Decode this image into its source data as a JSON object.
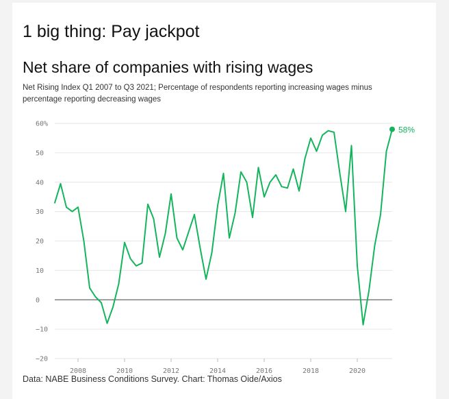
{
  "header": {
    "headline": "1 big thing: Pay jackpot"
  },
  "footer": {
    "source": "Data: NABE Business Conditions Survey. Chart: Thomas Oide/Axios"
  },
  "colors": {
    "line": "#13b45b",
    "grid": "#e6e6e6",
    "zero": "#444444"
  },
  "chart_data": {
    "type": "line",
    "title": "Net share of companies with rising wages",
    "subtitle": "Net Rising Index Q1 2007 to Q3 2021; Percentage of respondents reporting increasing wages minus percentage reporting decreasing wages",
    "xlabel": "",
    "ylabel": "",
    "xlim": [
      2007.0,
      2021.5
    ],
    "ylim": [
      -20,
      60
    ],
    "grid": true,
    "legend": "none",
    "x_ticks": [
      {
        "value": 2008,
        "label": "2008"
      },
      {
        "value": 2010,
        "label": "2010"
      },
      {
        "value": 2012,
        "label": "2012"
      },
      {
        "value": 2014,
        "label": "2014"
      },
      {
        "value": 2016,
        "label": "2016"
      },
      {
        "value": 2018,
        "label": "2018"
      },
      {
        "value": 2020,
        "label": "2020"
      }
    ],
    "y_ticks": [
      {
        "value": 60,
        "label": "60%"
      },
      {
        "value": 50,
        "label": "50"
      },
      {
        "value": 40,
        "label": "40"
      },
      {
        "value": 30,
        "label": "30"
      },
      {
        "value": 20,
        "label": "20"
      },
      {
        "value": 10,
        "label": "10"
      },
      {
        "value": 0,
        "label": "0"
      },
      {
        "value": -10,
        "label": "−10"
      },
      {
        "value": -20,
        "label": "−20"
      }
    ],
    "end_label": "58%",
    "series": [
      {
        "x": [
          2007.0,
          2007.25,
          2007.5,
          2007.75,
          2008.0,
          2008.25,
          2008.5,
          2008.75,
          2009.0,
          2009.25,
          2009.5,
          2009.75,
          2010.0,
          2010.25,
          2010.5,
          2010.75,
          2011.0,
          2011.25,
          2011.5,
          2011.75,
          2012.0,
          2012.25,
          2012.5,
          2012.75,
          2013.0,
          2013.25,
          2013.5,
          2013.75,
          2014.0,
          2014.25,
          2014.5,
          2014.75,
          2015.0,
          2015.25,
          2015.5,
          2015.75,
          2016.0,
          2016.25,
          2016.5,
          2016.75,
          2017.0,
          2017.25,
          2017.5,
          2017.75,
          2018.0,
          2018.25,
          2018.5,
          2018.75,
          2019.0,
          2019.25,
          2019.5,
          2019.75,
          2020.0,
          2020.25,
          2020.5,
          2020.75,
          2021.0,
          2021.25,
          2021.5
        ],
        "values": [
          33,
          39.5,
          31.5,
          30,
          31.5,
          20,
          4,
          1,
          -1,
          -8,
          -2.5,
          5.5,
          19.5,
          14,
          11.5,
          12.5,
          32.5,
          27.5,
          14.5,
          22.5,
          36,
          21,
          17,
          23,
          29,
          17.5,
          7,
          16,
          32,
          43,
          21,
          29.5,
          43.5,
          40,
          28,
          45,
          35,
          40,
          42.5,
          38.5,
          38,
          44.5,
          37,
          48,
          55,
          50.5,
          56,
          57.5,
          57,
          43,
          30,
          52.5,
          11.5,
          -8.5,
          3,
          18.5,
          29,
          50.5,
          58
        ]
      }
    ]
  }
}
